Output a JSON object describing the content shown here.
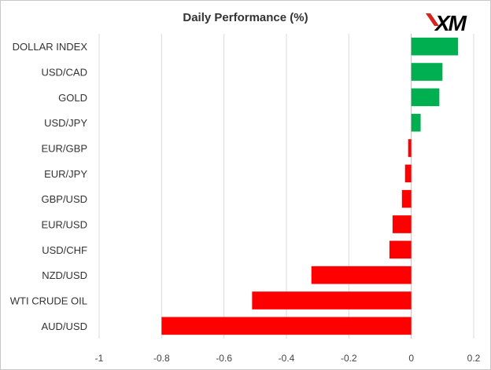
{
  "brand": {
    "logo_text": "XM",
    "logo_color": "#000000",
    "accent_color": "#d9231d"
  },
  "chart_data": {
    "type": "bar",
    "orientation": "horizontal",
    "title": "Daily Performance (%)",
    "xlabel": "",
    "ylabel": "",
    "xlim": [
      -1,
      0.2
    ],
    "xticks": [
      -1,
      -0.8,
      -0.6,
      -0.4,
      -0.2,
      0,
      0.2
    ],
    "xtick_labels": [
      "-1",
      "-0.8",
      "-0.6",
      "-0.4",
      "-0.2",
      "0",
      "0.2"
    ],
    "grid": "vertical",
    "legend": "none",
    "positive_color": "#00b050",
    "negative_color": "#ff0000",
    "categories": [
      "DOLLAR INDEX",
      "USD/CAD",
      "GOLD",
      "USD/JPY",
      "EUR/GBP",
      "EUR/JPY",
      "GBP/USD",
      "EUR/USD",
      "USD/CHF",
      "NZD/USD",
      "WTI CRUDE OIL",
      "AUD/USD"
    ],
    "values": [
      0.15,
      0.1,
      0.09,
      0.03,
      -0.01,
      -0.02,
      -0.03,
      -0.06,
      -0.07,
      -0.32,
      -0.51,
      -0.8
    ]
  }
}
